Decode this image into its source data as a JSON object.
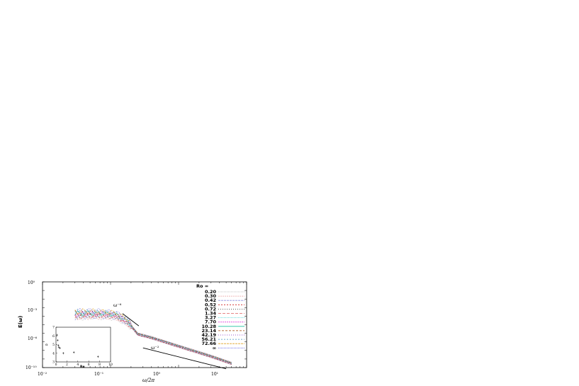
{
  "chart_data": [
    {
      "type": "line",
      "title": "",
      "xlabel": "ω/2π",
      "ylabel": "E(ω)",
      "xscale": "log",
      "yscale": "log",
      "xlim": [
        0.01,
        10
      ],
      "ylim": [
        1e-10,
        1
      ],
      "x_tick_labels": [
        "10⁻²",
        "10⁻¹",
        "10⁰",
        "10¹"
      ],
      "y_tick_labels": [
        "10⁰",
        "10⁻³",
        "10⁻⁶",
        "10⁻¹⁰"
      ],
      "grid": false,
      "legend_placement": "top-right",
      "legend_title": "Ro =",
      "series": [
        {
          "name": "0.20",
          "color": "#b0b0b0",
          "dash": "1,1"
        },
        {
          "name": "0.30",
          "color": "#e8a0a0",
          "dash": "2,1"
        },
        {
          "name": "0.42",
          "color": "#9090e0",
          "dash": "3,1"
        },
        {
          "name": "0.52",
          "color": "#d02020",
          "dash": "2,2"
        },
        {
          "name": "0.72",
          "color": "#202020",
          "dash": "1,2"
        },
        {
          "name": "1.34",
          "color": "#e06060",
          "dash": "4,2"
        },
        {
          "name": "3.27",
          "color": "#40d0d0",
          "dash": "1,1"
        },
        {
          "name": "7.70",
          "color": "#e040e0",
          "dash": "2,1"
        },
        {
          "name": "10.28",
          "color": "#20c0a0",
          "dash": "none"
        },
        {
          "name": "23.14",
          "color": "#a04000",
          "dash": "3,2"
        },
        {
          "name": "42.19",
          "color": "#8020c0",
          "dash": "1,2"
        },
        {
          "name": "56.21",
          "color": "#4090c0",
          "dash": "2,2"
        },
        {
          "name": "72.66",
          "color": "#e0a020",
          "dash": "3,1"
        },
        {
          "name": "∞",
          "color": "#6060e0",
          "dash": "1,1"
        }
      ],
      "curve_shape": {
        "x": [
          0.03,
          0.05,
          0.08,
          0.12,
          0.18,
          0.25,
          0.4,
          1,
          3,
          6
        ],
        "y": [
          0.00015,
          0.00018,
          0.00016,
          0.00012,
          2e-05,
          8e-07,
          3e-07,
          3e-08,
          2e-09,
          3e-10
        ]
      },
      "annotations": [
        {
          "text": "ω⁻⁶"
        },
        {
          "text": "ω⁻²"
        }
      ]
    },
    {
      "type": "scatter",
      "xlabel": "Ro",
      "ylabel": "α",
      "xlim": [
        0,
        10
      ],
      "ylim": [
        3,
        7
      ],
      "x_tick_labels": [
        "0",
        "2",
        "4",
        "6",
        "8",
        "10"
      ],
      "y_tick_labels": [
        "3",
        "4",
        "5",
        "6",
        "7"
      ],
      "x": [
        0.2,
        0.3,
        0.42,
        0.52,
        0.72,
        1.34,
        3.27,
        7.7
      ],
      "y": [
        6.1,
        5.5,
        4.9,
        4.7,
        4.6,
        4.0,
        4.1,
        3.6
      ]
    }
  ]
}
